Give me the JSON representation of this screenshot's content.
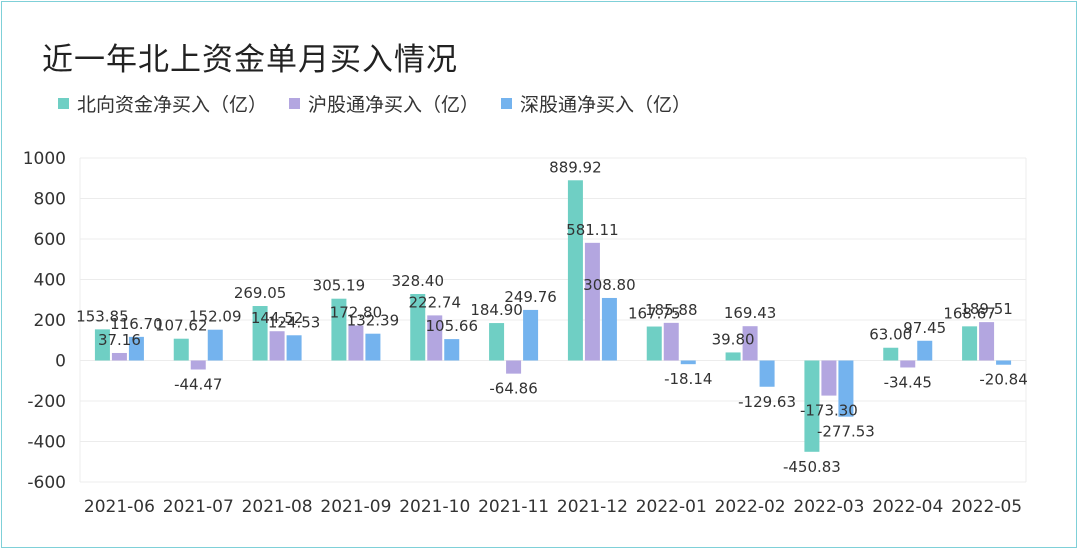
{
  "chart_data": {
    "type": "bar",
    "title": "近一年北上资金单月买入情况",
    "categories": [
      "2021-06",
      "2021-07",
      "2021-08",
      "2021-09",
      "2021-10",
      "2021-11",
      "2021-12",
      "2022-01",
      "2022-02",
      "2022-03",
      "2022-04",
      "2022-05"
    ],
    "series": [
      {
        "name": "北向资金净买入（亿）",
        "color": "#6fcfc4",
        "values": [
          153.85,
          107.62,
          269.05,
          305.19,
          328.4,
          184.9,
          889.92,
          167.75,
          39.8,
          -450.83,
          63.0,
          168.67
        ],
        "labels": [
          "153.85",
          "107.62",
          "269.05",
          "305.19",
          "328.40",
          "184.90",
          "889.92",
          "167.75",
          "39.80",
          "-450.83",
          "63.00",
          "168.67"
        ]
      },
      {
        "name": "沪股通净买入（亿）",
        "color": "#b3a6e0",
        "values": [
          37.16,
          -44.47,
          144.52,
          172.8,
          222.74,
          -64.86,
          581.11,
          185.88,
          169.43,
          -173.3,
          -34.45,
          189.51
        ],
        "labels": [
          "37.16",
          "-44.47",
          "144.52",
          "172.80",
          "222.74",
          "-64.86",
          "581.11",
          "185.88",
          "169.43",
          "-173.30",
          "-34.45",
          "189.51"
        ]
      },
      {
        "name": "深股通净买入（亿）",
        "color": "#74b3ee",
        "values": [
          116.7,
          152.09,
          124.53,
          132.39,
          105.66,
          249.76,
          308.8,
          -18.14,
          -129.63,
          -277.53,
          97.45,
          -20.84
        ],
        "labels": [
          "116.70",
          "152.09",
          "124.53",
          "132.39",
          "105.66",
          "249.76",
          "308.80",
          "-18.14",
          "-129.63",
          "-277.53",
          "97.45",
          "-20.84"
        ]
      }
    ],
    "ylim": [
      -600,
      1000
    ],
    "yticks": [
      "1000",
      "800",
      "600",
      "400",
      "200",
      "0",
      "-200",
      "-400",
      "-600"
    ],
    "grid": true,
    "legend_position": "top-left"
  }
}
